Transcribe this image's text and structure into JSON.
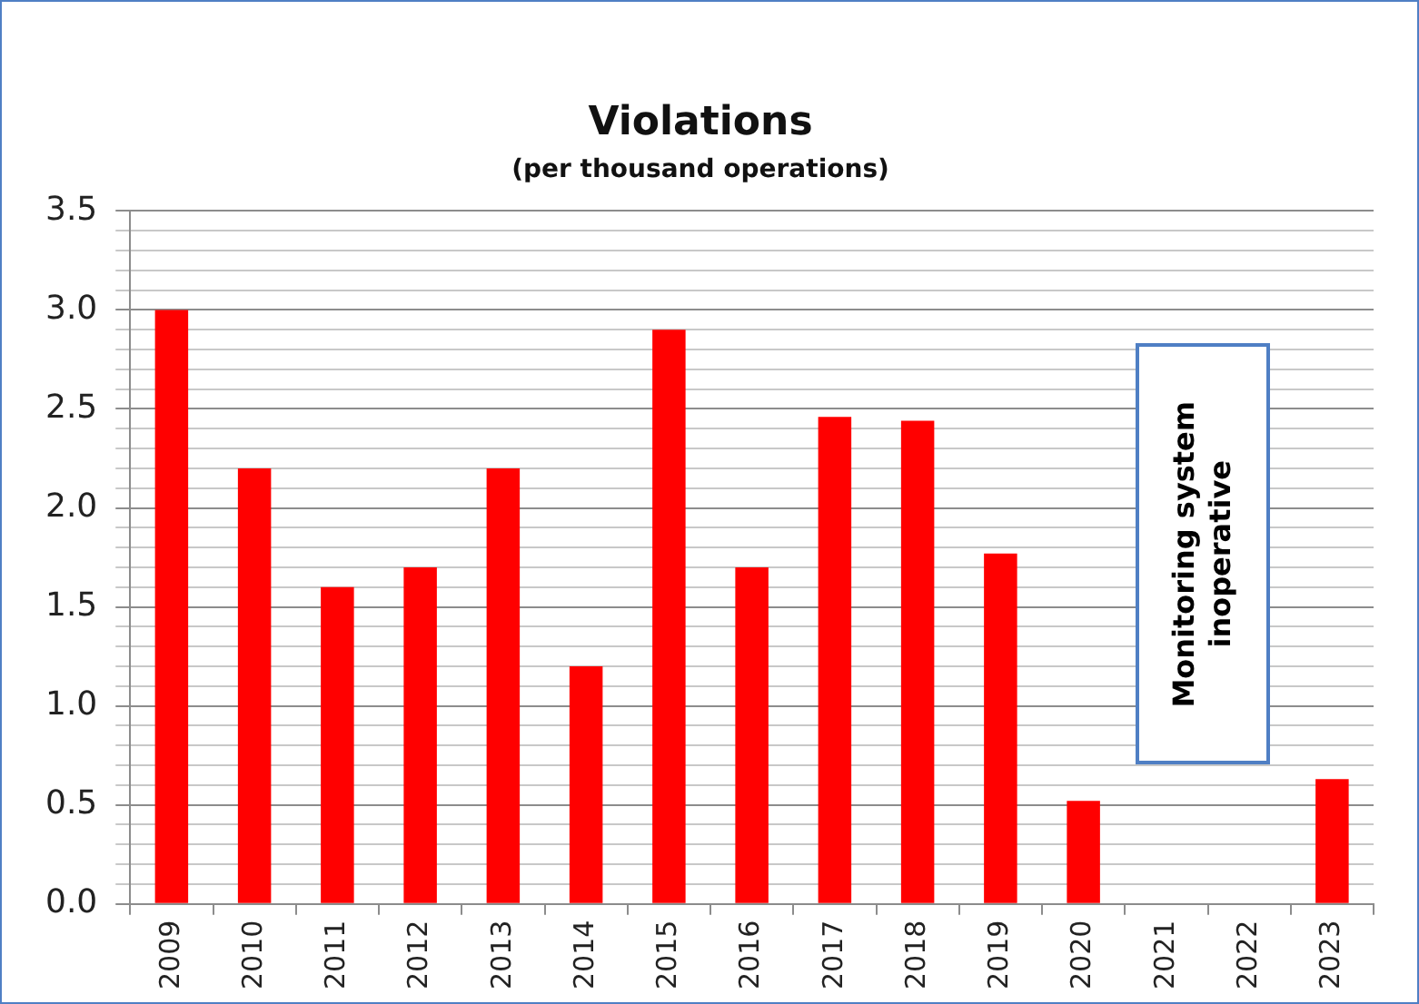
{
  "chart_data": {
    "type": "bar",
    "title": "Violations",
    "subtitle": "(per thousand operations)",
    "categories": [
      "2009",
      "2010",
      "2011",
      "2012",
      "2013",
      "2014",
      "2015",
      "2016",
      "2017",
      "2018",
      "2019",
      "2020",
      "2021",
      "2022",
      "2023"
    ],
    "values": [
      3.0,
      2.2,
      1.6,
      1.7,
      2.2,
      1.2,
      2.9,
      1.7,
      2.46,
      2.44,
      1.77,
      0.52,
      null,
      null,
      0.63
    ],
    "color": "#ff0000",
    "ylim": [
      0,
      3.5
    ],
    "yticks": [
      {
        "value": 0,
        "label": "0.0"
      },
      {
        "value": 0.1,
        "label": null
      },
      {
        "value": 0.2,
        "label": null
      },
      {
        "value": 0.3,
        "label": null
      },
      {
        "value": 0.4,
        "label": null
      },
      {
        "value": 0.5,
        "label": "0.5"
      },
      {
        "value": 0.6,
        "label": null
      },
      {
        "value": 0.7,
        "label": null
      },
      {
        "value": 0.8,
        "label": null
      },
      {
        "value": 0.9,
        "label": null
      },
      {
        "value": 1.0,
        "label": "1.0"
      },
      {
        "value": 1.1,
        "label": null
      },
      {
        "value": 1.2,
        "label": null
      },
      {
        "value": 1.3,
        "label": null
      },
      {
        "value": 1.4,
        "label": null
      },
      {
        "value": 1.5,
        "label": "1.5"
      },
      {
        "value": 1.6,
        "label": null
      },
      {
        "value": 1.7,
        "label": null
      },
      {
        "value": 1.8,
        "label": null
      },
      {
        "value": 1.9,
        "label": null
      },
      {
        "value": 2.0,
        "label": "2.0"
      },
      {
        "value": 2.1,
        "label": null
      },
      {
        "value": 2.2,
        "label": null
      },
      {
        "value": 2.3,
        "label": null
      },
      {
        "value": 2.4,
        "label": null
      },
      {
        "value": 2.5,
        "label": "2.5"
      },
      {
        "value": 2.6,
        "label": null
      },
      {
        "value": 2.7,
        "label": null
      },
      {
        "value": 2.8,
        "label": null
      },
      {
        "value": 2.9,
        "label": null
      },
      {
        "value": 3.0,
        "label": "3.0"
      },
      {
        "value": 3.1,
        "label": null
      },
      {
        "value": 3.2,
        "label": null
      },
      {
        "value": 3.3,
        "label": null
      },
      {
        "value": 3.4,
        "label": null
      },
      {
        "value": 3.5,
        "label": "3.5"
      }
    ],
    "grid": "y",
    "legend": false,
    "annotations": [
      "Monitoring system inoperative"
    ]
  }
}
